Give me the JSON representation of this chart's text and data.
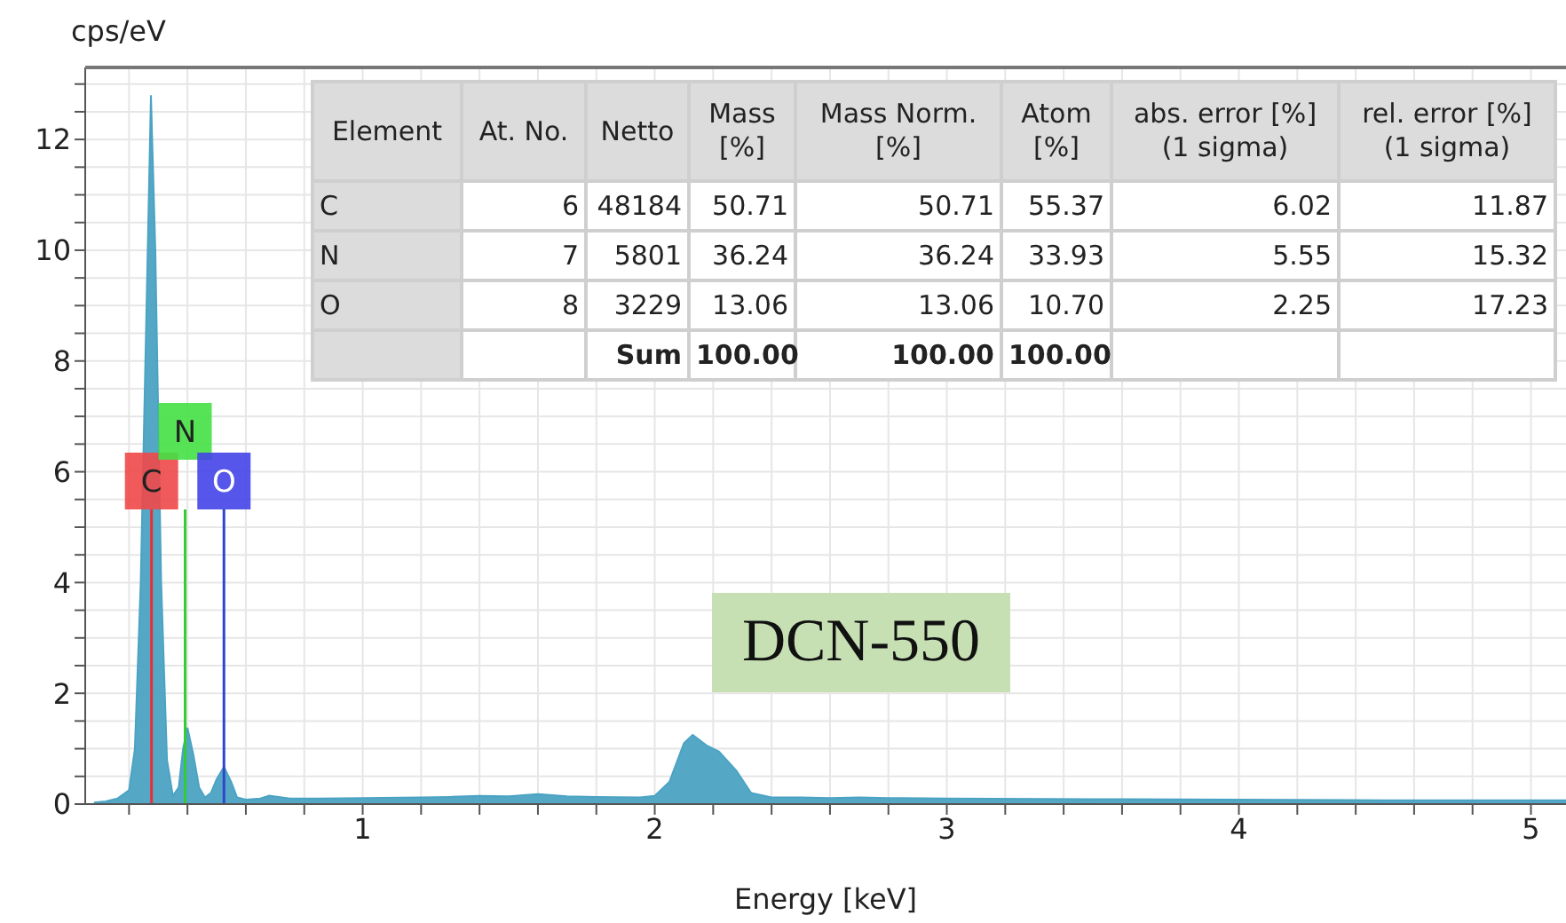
{
  "chart_data": {
    "type": "area",
    "xlabel": "Energy [keV]",
    "ylabel": "cps/eV",
    "x": [
      0.08,
      0.12,
      0.16,
      0.2,
      0.22,
      0.24,
      0.26,
      0.275,
      0.29,
      0.31,
      0.33,
      0.35,
      0.37,
      0.385,
      0.4,
      0.42,
      0.44,
      0.46,
      0.48,
      0.5,
      0.525,
      0.55,
      0.57,
      0.6,
      0.65,
      0.68,
      0.75,
      0.85,
      1.0,
      1.2,
      1.3,
      1.4,
      1.5,
      1.6,
      1.7,
      1.8,
      1.95,
      2.0,
      2.05,
      2.1,
      2.13,
      2.18,
      2.22,
      2.28,
      2.33,
      2.4,
      2.5,
      2.6,
      2.7,
      2.8,
      3.0,
      3.5,
      4.0,
      4.5,
      5.0,
      5.12
    ],
    "series": [
      {
        "color": "#4ba3c3",
        "values": [
          0.03,
          0.05,
          0.1,
          0.25,
          1.0,
          4,
          9,
          12.8,
          10,
          4,
          0.8,
          0.15,
          0.3,
          1.0,
          1.38,
          0.9,
          0.3,
          0.12,
          0.2,
          0.45,
          0.67,
          0.4,
          0.12,
          0.08,
          0.1,
          0.15,
          0.1,
          0.1,
          0.11,
          0.12,
          0.13,
          0.15,
          0.14,
          0.18,
          0.14,
          0.13,
          0.12,
          0.15,
          0.4,
          1.1,
          1.25,
          1.05,
          0.95,
          0.6,
          0.2,
          0.12,
          0.12,
          0.11,
          0.12,
          0.11,
          0.1,
          0.09,
          0.08,
          0.07,
          0.07,
          0.07
        ]
      }
    ],
    "xlim": [
      0.05,
      5.12
    ],
    "xticks": [
      {
        "value": 0.2,
        "label": null
      },
      {
        "value": 0.4,
        "label": null
      },
      {
        "value": 0.6,
        "label": null
      },
      {
        "value": 0.8,
        "label": null
      },
      1,
      {
        "value": 1.2,
        "label": null
      },
      {
        "value": 1.4,
        "label": null
      },
      {
        "value": 1.6,
        "label": null
      },
      {
        "value": 1.8,
        "label": null
      },
      2,
      {
        "value": 2.2,
        "label": null
      },
      {
        "value": 2.4,
        "label": null
      },
      {
        "value": 2.6,
        "label": null
      },
      {
        "value": 2.8,
        "label": null
      },
      3,
      {
        "value": 3.2,
        "label": null
      },
      {
        "value": 3.4,
        "label": null
      },
      {
        "value": 3.6,
        "label": null
      },
      {
        "value": 3.8,
        "label": null
      },
      4,
      {
        "value": 4.2,
        "label": null
      },
      {
        "value": 4.4,
        "label": null
      },
      {
        "value": 4.6,
        "label": null
      },
      {
        "value": 4.8,
        "label": null
      },
      5
    ],
    "ylim": [
      0,
      13.3
    ],
    "yticks": [
      0,
      {
        "value": 0.5,
        "label": null
      },
      {
        "value": 1,
        "label": null
      },
      {
        "value": 1.5,
        "label": null
      },
      2,
      {
        "value": 2.5,
        "label": null
      },
      {
        "value": 3,
        "label": null
      },
      {
        "value": 3.5,
        "label": null
      },
      4,
      {
        "value": 4.5,
        "label": null
      },
      {
        "value": 5,
        "label": null
      },
      {
        "value": 5.5,
        "label": null
      },
      6,
      {
        "value": 6.5,
        "label": null
      },
      {
        "value": 7,
        "label": null
      },
      {
        "value": 7.5,
        "label": null
      },
      8,
      {
        "value": 8.5,
        "label": null
      },
      {
        "value": 9,
        "label": null
      },
      {
        "value": 9.5,
        "label": null
      },
      10,
      {
        "value": 10.5,
        "label": null
      },
      {
        "value": 11,
        "label": null
      },
      {
        "value": 11.5,
        "label": null
      },
      12,
      {
        "value": 12.5,
        "label": null
      },
      {
        "value": 13,
        "label": null
      }
    ],
    "grid": true,
    "ref_lines": [
      {
        "axis": "x",
        "value": 0.277,
        "label": "C",
        "color": "#e83030"
      },
      {
        "axis": "x",
        "value": 0.392,
        "label": "N",
        "color": "#33cc33"
      },
      {
        "axis": "x",
        "value": 0.525,
        "label": "O",
        "color": "#3344cc"
      }
    ],
    "annotations": [
      "DCN-550",
      "Element",
      "At. No.",
      "Netto",
      "Mass [%]",
      "Mass Norm. [%]",
      "Atom [%]",
      "abs. error [%] (1 sigma)",
      "rel. error [%] (1 sigma)",
      "C",
      "6",
      "48184",
      "50.71",
      "50.71",
      "55.37",
      "6.02",
      "11.87",
      "N",
      "7",
      "5801",
      "36.24",
      "36.24",
      "33.93",
      "5.55",
      "15.32",
      "O",
      "8",
      "3229",
      "13.06",
      "13.06",
      "10.70",
      "2.25",
      "17.23",
      null,
      null,
      "Sum",
      "100.00",
      "100.00",
      "100.00",
      null,
      null
    ]
  }
}
